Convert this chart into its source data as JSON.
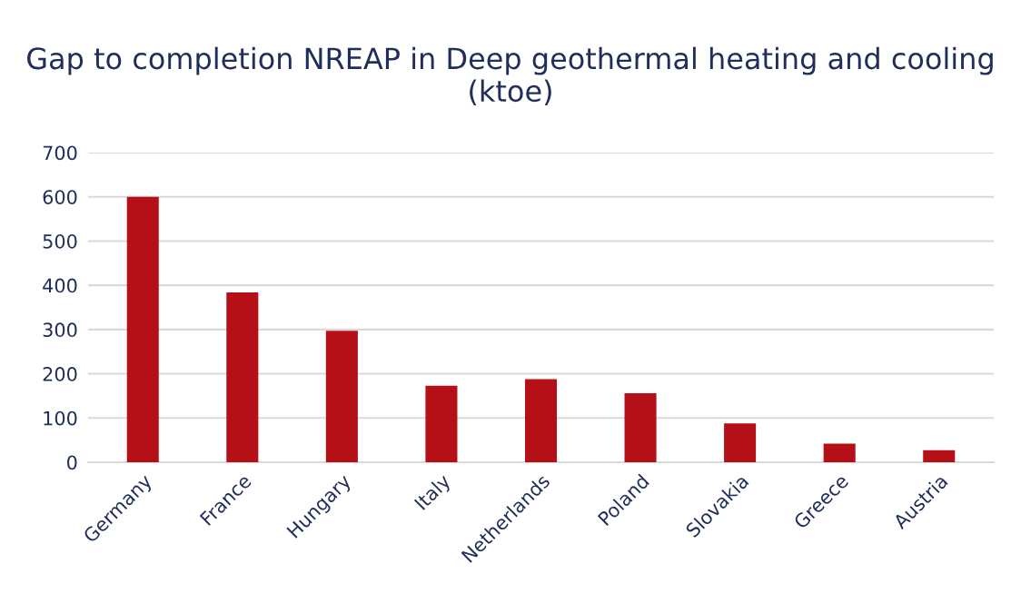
{
  "chart_data": {
    "type": "bar",
    "title": "Gap to completion NREAP in Deep geothermal heating and cooling (ktoe)",
    "categories": [
      "Germany",
      "France",
      "Hungary",
      "Italy",
      "Netherlands",
      "Poland",
      "Slovakia",
      "Greece",
      "Austria"
    ],
    "values": [
      600,
      384,
      297,
      173,
      188,
      156,
      88,
      42,
      27
    ],
    "color": "#b50f18",
    "ylim": [
      0,
      700
    ],
    "yticks": [
      0,
      100,
      200,
      300,
      400,
      500,
      600,
      700
    ],
    "grid": "y"
  }
}
